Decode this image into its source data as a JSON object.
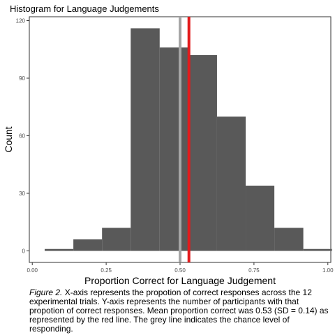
{
  "chart_data": {
    "type": "bar",
    "title": "Histogram for Language Judgements",
    "xlabel": "Proportion Correct for Language Judgement",
    "ylabel": "Count",
    "xlim": [
      -0.01,
      1.01
    ],
    "ylim": [
      -6,
      122
    ],
    "x_ticks": [
      0.0,
      0.25,
      0.5,
      0.75,
      1.0
    ],
    "x_tick_labels": [
      "0.00",
      "0.25",
      "0.50",
      "0.75",
      "1.00"
    ],
    "y_ticks": [
      0,
      30,
      60,
      90,
      120
    ],
    "y_tick_labels": [
      "0",
      "30",
      "60",
      "90",
      "120"
    ],
    "bins": [
      {
        "x0": 0.042,
        "x1": 0.139,
        "count": 1
      },
      {
        "x0": 0.139,
        "x1": 0.236,
        "count": 6
      },
      {
        "x0": 0.236,
        "x1": 0.333,
        "count": 12
      },
      {
        "x0": 0.333,
        "x1": 0.431,
        "count": 116
      },
      {
        "x0": 0.431,
        "x1": 0.528,
        "count": 106
      },
      {
        "x0": 0.528,
        "x1": 0.625,
        "count": 102
      },
      {
        "x0": 0.625,
        "x1": 0.722,
        "count": 70
      },
      {
        "x0": 0.722,
        "x1": 0.819,
        "count": 34
      },
      {
        "x0": 0.819,
        "x1": 0.917,
        "count": 12
      },
      {
        "x0": 0.917,
        "x1": 1.014,
        "count": 1
      }
    ],
    "reference_lines": [
      {
        "x": 0.5,
        "color": "#a6a6a6",
        "meaning": "chance level"
      },
      {
        "x": 0.53,
        "color": "#e31a1c",
        "meaning": "mean proportion correct"
      }
    ],
    "bar_color": "#595959",
    "grid": false
  },
  "caption": {
    "label": "Figure 2.",
    "text": " X-axis represents the propotion of correct responses across the 12 experimental trials. Y-axis represents the number of participants with that propotion of correct responses. Mean proportion correct was 0.53 (SD = 0.14) as represented by the red line. The grey line indicates the chance level of responding."
  }
}
